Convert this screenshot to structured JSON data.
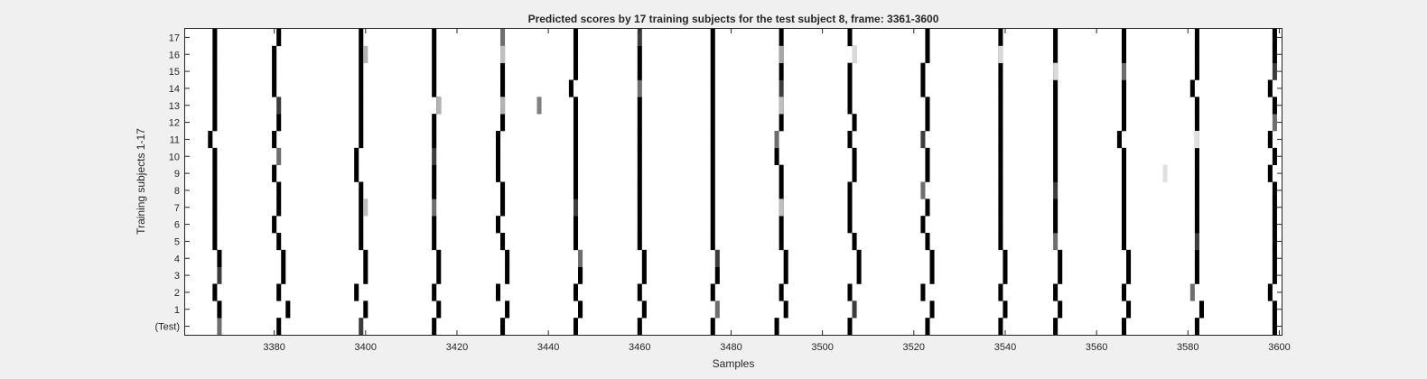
{
  "chart_data": {
    "type": "heatmap",
    "title": "Predicted scores by 17 training subjects for the test subject 8, frame: 3361-3600",
    "xlabel": "Samples",
    "ylabel": "Training subjects 1-17",
    "xlim": [
      3361,
      3600
    ],
    "x_ticks": [
      3380,
      3400,
      3420,
      3440,
      3460,
      3480,
      3500,
      3520,
      3540,
      3560,
      3580,
      3600
    ],
    "y_tick_labels": [
      "(Test)",
      "1",
      "2",
      "3",
      "4",
      "5",
      "6",
      "7",
      "8",
      "9",
      "10",
      "11",
      "12",
      "13",
      "14",
      "15",
      "16",
      "17"
    ],
    "colormap": "gray, white background, darker = higher predicted score",
    "background_color": "#f0f0f0",
    "beat_columns": [
      [
        3368,
        3368,
        3367,
        3368,
        3368,
        3367,
        3367,
        3367,
        3367,
        3367,
        3367,
        3366,
        3367,
        3367,
        3367,
        3367,
        3367,
        3367
      ],
      [
        3381,
        3383,
        3381,
        3382,
        3382,
        3381,
        3380,
        3381,
        3381,
        3380,
        3381,
        3380,
        3381,
        3381,
        3380,
        3380,
        3380,
        3381
      ],
      [
        3399,
        3400,
        3398,
        3400,
        3400,
        3399,
        3399,
        3399,
        3399,
        3398,
        3398,
        3399,
        3399,
        3399,
        3399,
        3399,
        3399,
        3399
      ],
      [
        3415,
        3416,
        3415,
        3416,
        3416,
        3415,
        3415,
        3415,
        3415,
        3415,
        3415,
        3415,
        3415,
        3416,
        3415,
        3415,
        3415,
        3415
      ],
      [
        3430,
        3431,
        3429,
        3431,
        3431,
        3430,
        3429,
        3430,
        3430,
        3429,
        3429,
        3429,
        3430,
        3430,
        3430,
        3430,
        3430,
        3430
      ],
      [
        3446,
        3447,
        3446,
        3447,
        3447,
        3446,
        3446,
        3446,
        3446,
        3446,
        3446,
        3446,
        3446,
        3446,
        3445,
        3446,
        3446,
        3446
      ],
      [
        3460,
        3461,
        3460,
        3461,
        3461,
        3460,
        3460,
        3460,
        3460,
        3460,
        3460,
        3460,
        3460,
        3460,
        3460,
        3460,
        3460,
        3460
      ],
      [
        3476,
        3477,
        3476,
        3477,
        3477,
        3476,
        3476,
        3476,
        3476,
        3476,
        3476,
        3476,
        3476,
        3476,
        3476,
        3476,
        3476,
        3476
      ],
      [
        3490,
        3492,
        3491,
        3492,
        3492,
        3491,
        3491,
        3491,
        3491,
        3491,
        3490,
        3490,
        3491,
        3491,
        3491,
        3491,
        3491,
        3491
      ],
      [
        3506,
        3507,
        3506,
        3508,
        3508,
        3507,
        3506,
        3506,
        3506,
        3507,
        3507,
        3506,
        3507,
        3506,
        3506,
        3506,
        3507,
        3506
      ],
      [
        3523,
        3524,
        3522,
        3524,
        3524,
        3523,
        3522,
        3523,
        3522,
        3523,
        3523,
        3522,
        3523,
        3523,
        3522,
        3522,
        3523,
        3523
      ],
      [
        3539,
        3540,
        3539,
        3540,
        3540,
        3539,
        3539,
        3539,
        3539,
        3539,
        3539,
        3539,
        3539,
        3539,
        3539,
        3539,
        3539,
        3539
      ],
      [
        3551,
        3552,
        3551,
        3552,
        3552,
        3551,
        3551,
        3551,
        3551,
        3551,
        3551,
        3551,
        3551,
        3551,
        3551,
        3551,
        3551,
        3551
      ],
      [
        3566,
        3567,
        3566,
        3567,
        3567,
        3566,
        3566,
        3566,
        3566,
        3566,
        3566,
        3565,
        3566,
        3566,
        3566,
        3566,
        3566,
        3566
      ],
      [
        3582,
        3583,
        3581,
        3582,
        3582,
        3582,
        3582,
        3582,
        3582,
        3582,
        3582,
        3582,
        3582,
        3582,
        3581,
        3582,
        3582,
        3582
      ],
      [
        3599,
        3599,
        3598,
        3599,
        3599,
        3599,
        3599,
        3599,
        3599,
        3598,
        3599,
        3598,
        3599,
        3599,
        3598,
        3599,
        3599,
        3599
      ]
    ],
    "light_cells": [
      {
        "x": 3400,
        "row": 7,
        "score": 0.25
      },
      {
        "x": 3400,
        "row": 16,
        "score": 0.3
      },
      {
        "x": 3416,
        "row": 13,
        "score": 0.3
      },
      {
        "x": 3430,
        "row": 13,
        "score": 0.3
      },
      {
        "x": 3430,
        "row": 16,
        "score": 0.25
      },
      {
        "x": 3438,
        "row": 13,
        "score": 0.5
      },
      {
        "x": 3491,
        "row": 13,
        "score": 0.25
      },
      {
        "x": 3491,
        "row": 7,
        "score": 0.25
      },
      {
        "x": 3491,
        "row": 16,
        "score": 0.35
      },
      {
        "x": 3507,
        "row": 16,
        "score": 0.15
      },
      {
        "x": 3539,
        "row": 16,
        "score": 0.15
      },
      {
        "x": 3551,
        "row": 15,
        "score": 0.15
      },
      {
        "x": 3575,
        "row": 9,
        "score": 0.12
      },
      {
        "x": 3582,
        "row": 11,
        "score": 0.12
      }
    ]
  }
}
